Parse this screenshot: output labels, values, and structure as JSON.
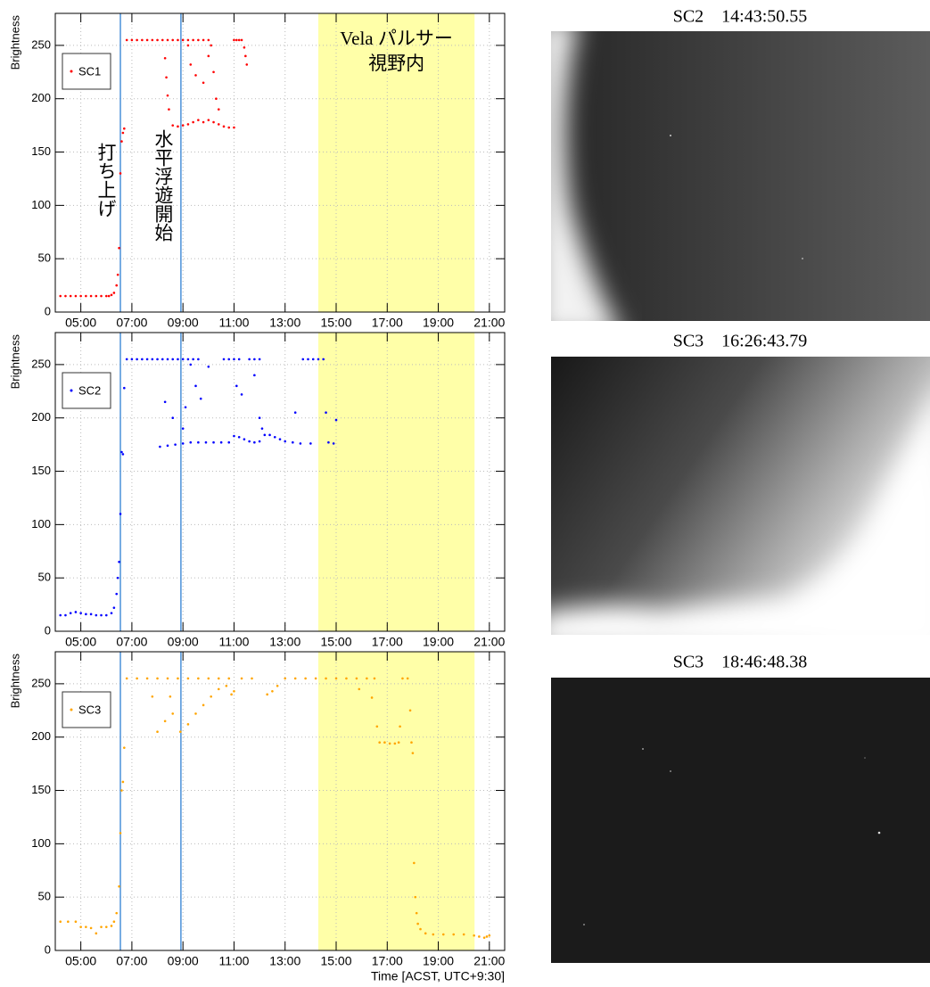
{
  "chart_data": [
    {
      "type": "scatter",
      "ylabel": "Brightness",
      "xlim": [
        4.0,
        21.6
      ],
      "ylim": [
        0,
        280
      ],
      "xticks": [
        {
          "value": 5,
          "label": "05:00"
        },
        {
          "value": 7,
          "label": "07:00"
        },
        {
          "value": 9,
          "label": "09:00"
        },
        {
          "value": 11,
          "label": "11:00"
        },
        {
          "value": 13,
          "label": "13:00"
        },
        {
          "value": 15,
          "label": "15:00"
        },
        {
          "value": 17,
          "label": "17:00"
        },
        {
          "value": 19,
          "label": "19:00"
        },
        {
          "value": 21,
          "label": "21:00"
        }
      ],
      "yticks": [
        0,
        50,
        100,
        150,
        200,
        250
      ],
      "grid": true,
      "vlines": [
        6.55,
        8.92
      ],
      "highlight": [
        14.3,
        20.42
      ],
      "highlight_color": "#ffffa8",
      "annotations": [
        "打ち上げ",
        "水平浮遊開始"
      ],
      "highlight_label": [
        "Vela パルサー",
        "視野内"
      ],
      "x": [
        4.2,
        4.4,
        4.6,
        4.8,
        5.0,
        5.2,
        5.4,
        5.6,
        5.8,
        6.0,
        6.1,
        6.2,
        6.3,
        6.4,
        6.45,
        6.5,
        6.55,
        6.6,
        6.65,
        6.7,
        6.8,
        7.0,
        7.2,
        7.4,
        7.6,
        7.8,
        8.0,
        8.2,
        8.4,
        8.6,
        8.8,
        9.0,
        9.2,
        9.4,
        9.6,
        9.8,
        10.0,
        8.6,
        8.8,
        9.0,
        9.2,
        9.4,
        9.6,
        9.8,
        10.0,
        10.2,
        10.4,
        10.6,
        10.8,
        11.0,
        8.3,
        8.35,
        8.4,
        8.45,
        9.3,
        9.5,
        9.8,
        10.0,
        10.2,
        10.3,
        10.4,
        10.1,
        9.2,
        11.0,
        11.1,
        11.2,
        11.3,
        11.4,
        11.45,
        11.5
      ],
      "series": [
        {
          "name": "SC1",
          "color": "#ff0000",
          "values": [
            15,
            15,
            15,
            15,
            15,
            15,
            15,
            15,
            15,
            15,
            15,
            16,
            18,
            25,
            35,
            60,
            130,
            160,
            168,
            172,
            255,
            255,
            255,
            255,
            255,
            255,
            255,
            255,
            255,
            255,
            255,
            255,
            255,
            255,
            255,
            255,
            255,
            175,
            174,
            175,
            176,
            178,
            180,
            178,
            180,
            178,
            176,
            174,
            173,
            173,
            238,
            220,
            203,
            190,
            232,
            222,
            215,
            240,
            225,
            200,
            190,
            250,
            250,
            255,
            255,
            255,
            255,
            248,
            240,
            232
          ]
        }
      ]
    },
    {
      "type": "scatter",
      "ylabel": "Brightness",
      "xlim": [
        4.0,
        21.6
      ],
      "ylim": [
        0,
        280
      ],
      "xticks": [
        {
          "value": 5,
          "label": "05:00"
        },
        {
          "value": 7,
          "label": "07:00"
        },
        {
          "value": 9,
          "label": "09:00"
        },
        {
          "value": 11,
          "label": "11:00"
        },
        {
          "value": 13,
          "label": "13:00"
        },
        {
          "value": 15,
          "label": "15:00"
        },
        {
          "value": 17,
          "label": "17:00"
        },
        {
          "value": 19,
          "label": "19:00"
        },
        {
          "value": 21,
          "label": "21:00"
        }
      ],
      "yticks": [
        0,
        50,
        100,
        150,
        200,
        250
      ],
      "grid": true,
      "vlines": [
        6.55,
        8.92
      ],
      "highlight": [
        14.3,
        20.42
      ],
      "highlight_color": "#ffffa8",
      "x": [
        4.2,
        4.4,
        4.6,
        4.8,
        5.0,
        5.2,
        5.4,
        5.6,
        5.8,
        6.0,
        6.2,
        6.3,
        6.4,
        6.45,
        6.5,
        6.55,
        6.6,
        6.65,
        6.7,
        6.8,
        7.0,
        7.2,
        7.4,
        7.6,
        7.8,
        8.0,
        8.2,
        8.4,
        8.6,
        8.8,
        9.0,
        9.2,
        9.4,
        9.6,
        10.6,
        10.8,
        11.0,
        11.2,
        11.6,
        11.8,
        12.0,
        13.7,
        13.9,
        14.1,
        14.3,
        14.5,
        8.1,
        8.4,
        8.7,
        9.0,
        9.3,
        9.6,
        9.9,
        10.2,
        10.5,
        10.8,
        11.0,
        11.2,
        11.4,
        11.6,
        11.8,
        12.0,
        12.2,
        12.4,
        12.6,
        12.8,
        13.0,
        13.3,
        13.6,
        14.0,
        14.7,
        14.9,
        8.3,
        8.6,
        9.0,
        9.1,
        9.3,
        9.5,
        9.7,
        10.0,
        11.1,
        11.3,
        11.8,
        12.0,
        12.1,
        13.4,
        14.6,
        15.0
      ],
      "series": [
        {
          "name": "SC2",
          "color": "#0000ff",
          "values": [
            15,
            15,
            17,
            18,
            17,
            16,
            16,
            15,
            15,
            15,
            17,
            22,
            35,
            50,
            65,
            110,
            168,
            166,
            228,
            255,
            255,
            255,
            255,
            255,
            255,
            255,
            255,
            255,
            255,
            255,
            255,
            255,
            255,
            255,
            255,
            255,
            255,
            255,
            255,
            255,
            255,
            255,
            255,
            255,
            255,
            255,
            173,
            174,
            175,
            176,
            177,
            177,
            177,
            177,
            177,
            177,
            183,
            182,
            180,
            178,
            177,
            178,
            184,
            184,
            182,
            180,
            178,
            177,
            176,
            176,
            177,
            176,
            215,
            200,
            190,
            210,
            250,
            230,
            218,
            248,
            230,
            222,
            240,
            200,
            190,
            205,
            205,
            198
          ]
        }
      ]
    },
    {
      "type": "scatter",
      "ylabel": "Brightness",
      "xlabel": "Time [ACST, UTC+9:30]",
      "xlim": [
        4.0,
        21.6
      ],
      "ylim": [
        0,
        280
      ],
      "xticks": [
        {
          "value": 5,
          "label": "05:00"
        },
        {
          "value": 7,
          "label": "07:00"
        },
        {
          "value": 9,
          "label": "09:00"
        },
        {
          "value": 11,
          "label": "11:00"
        },
        {
          "value": 13,
          "label": "13:00"
        },
        {
          "value": 15,
          "label": "15:00"
        },
        {
          "value": 17,
          "label": "17:00"
        },
        {
          "value": 19,
          "label": "19:00"
        },
        {
          "value": 21,
          "label": "21:00"
        }
      ],
      "yticks": [
        0,
        50,
        100,
        150,
        200,
        250
      ],
      "grid": true,
      "vlines": [
        6.55,
        8.92
      ],
      "highlight": [
        14.3,
        20.42
      ],
      "highlight_color": "#ffffa8",
      "x": [
        4.2,
        4.5,
        4.8,
        5.0,
        5.2,
        5.4,
        5.6,
        5.8,
        6.0,
        6.2,
        6.3,
        6.4,
        6.5,
        6.55,
        6.6,
        6.65,
        6.7,
        6.8,
        7.2,
        7.6,
        8.0,
        8.4,
        8.8,
        9.2,
        9.6,
        10.0,
        10.4,
        10.8,
        11.3,
        11.7,
        13.0,
        13.4,
        13.8,
        14.2,
        14.6,
        15.0,
        15.4,
        15.8,
        16.2,
        16.5,
        17.6,
        17.8,
        8.0,
        8.3,
        8.6,
        8.9,
        9.2,
        9.5,
        9.8,
        10.1,
        10.4,
        10.7,
        10.9,
        11.0,
        12.3,
        12.5,
        12.7,
        7.8,
        8.5,
        16.7,
        16.9,
        17.1,
        17.3,
        17.45,
        16.6,
        17.5,
        17.9,
        17.95,
        18.0,
        18.05,
        18.1,
        18.15,
        18.2,
        18.3,
        18.5,
        18.8,
        19.2,
        19.6,
        20.0,
        20.4,
        20.6,
        20.8,
        20.9,
        21.0,
        16.4,
        15.9
      ],
      "series": [
        {
          "name": "SC3",
          "color": "#ffa500",
          "values": [
            27,
            27,
            27,
            22,
            22,
            21,
            16,
            22,
            22,
            23,
            27,
            35,
            60,
            110,
            150,
            158,
            190,
            255,
            255,
            255,
            255,
            255,
            255,
            255,
            255,
            255,
            255,
            255,
            255,
            255,
            255,
            255,
            255,
            255,
            255,
            255,
            255,
            255,
            255,
            255,
            255,
            255,
            205,
            215,
            222,
            205,
            212,
            222,
            230,
            238,
            245,
            248,
            240,
            243,
            240,
            243,
            248,
            238,
            238,
            195,
            195,
            194,
            194,
            195,
            210,
            210,
            225,
            195,
            185,
            82,
            50,
            35,
            25,
            20,
            16,
            15,
            15,
            15,
            15,
            14,
            13,
            12,
            13,
            14,
            237,
            245
          ]
        }
      ]
    }
  ],
  "images": [
    {
      "title": "SC2　14:43:50.55"
    },
    {
      "title": "SC3　16:26:43.79"
    },
    {
      "title": "SC3　18:46:48.38"
    }
  ]
}
